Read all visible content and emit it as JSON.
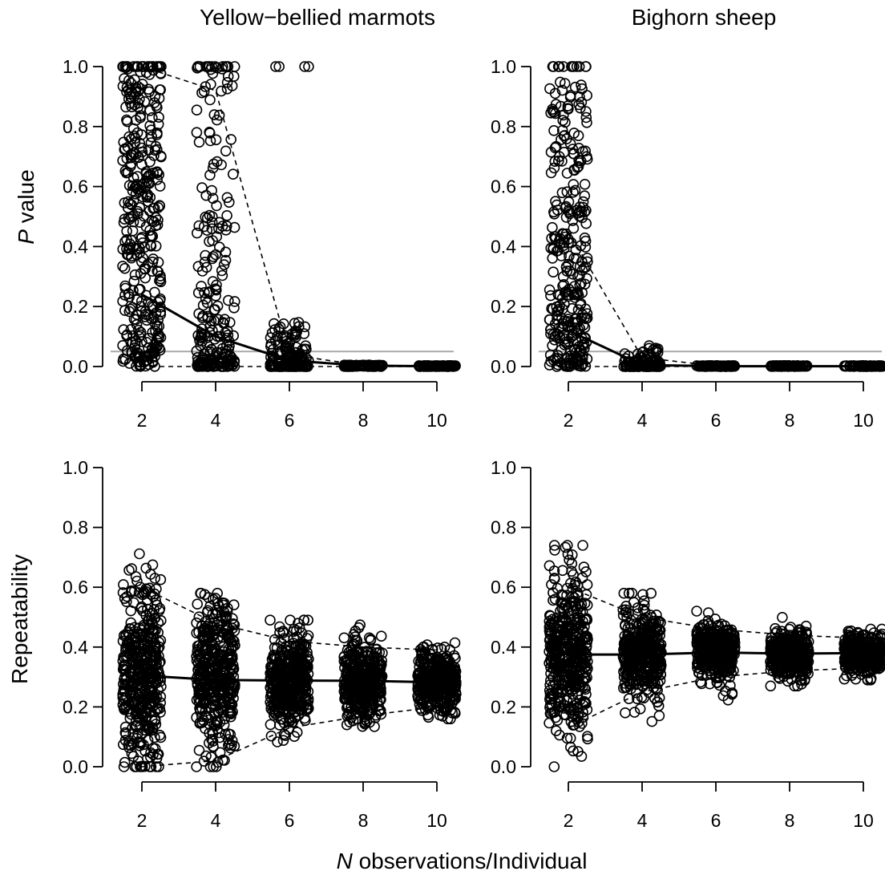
{
  "labels": {
    "xlabel_italic": "N",
    "xlabel_rest": " observations/Individual",
    "ylabel_top_italic": "P",
    "ylabel_top_rest": " value",
    "ylabel_bottom": "Repeatability"
  },
  "chart_data": [
    {
      "type": "scatter",
      "title": "Yellow−bellied marmots",
      "ylabel": "P value",
      "x_ticks": [
        2,
        4,
        6,
        8,
        10
      ],
      "y_ticks": [
        "0.0",
        "0.2",
        "0.4",
        "0.6",
        "0.8",
        "1.0"
      ],
      "xlim": [
        1.6,
        10.4
      ],
      "ylim": [
        0,
        1
      ],
      "reference_line": 0.05,
      "mean": {
        "x": [
          2,
          4,
          6,
          8,
          10
        ],
        "y": [
          0.24,
          0.1,
          0.02,
          0.003,
          0.001
        ]
      },
      "upper": {
        "x": [
          2,
          4,
          6,
          8,
          10
        ],
        "y": [
          1.0,
          0.92,
          0.04,
          0.003,
          0.001
        ]
      },
      "lower": {
        "x": [
          2,
          4,
          6,
          8,
          10
        ],
        "y": [
          0.0,
          0.0,
          0.0,
          0.0,
          0.0
        ]
      },
      "groups": [
        {
          "x": 2,
          "n": 340,
          "range": [
            0.0,
            1.0
          ],
          "skew": 1.2,
          "cap_count": 18,
          "cap_value": 1.0
        },
        {
          "x": 4,
          "n": 220,
          "range": [
            0.0,
            1.0
          ],
          "skew": 2.6,
          "cap_count": 14,
          "cap_value": 1.0
        },
        {
          "x": 6,
          "n": 170,
          "range": [
            0.0,
            0.15
          ],
          "skew": 3.0,
          "cap_count": 4,
          "cap_value": 1.0
        },
        {
          "x": 8,
          "n": 90,
          "range": [
            0.0,
            0.005
          ],
          "skew": 1.0,
          "cap_count": 0,
          "cap_value": 1.0
        },
        {
          "x": 10,
          "n": 90,
          "range": [
            0.0,
            0.003
          ],
          "skew": 1.0,
          "cap_count": 0,
          "cap_value": 1.0
        }
      ]
    },
    {
      "type": "scatter",
      "title": "Bighorn sheep",
      "ylabel": "P value",
      "x_ticks": [
        2,
        4,
        6,
        8,
        10
      ],
      "y_ticks": [
        "0.0",
        "0.2",
        "0.4",
        "0.6",
        "0.8",
        "1.0"
      ],
      "xlim": [
        1.6,
        10.4
      ],
      "ylim": [
        0,
        1
      ],
      "reference_line": 0.05,
      "mean": {
        "x": [
          2,
          4,
          6,
          8,
          10
        ],
        "y": [
          0.12,
          0.005,
          0.001,
          0.001,
          0.001
        ]
      },
      "upper": {
        "x": [
          2,
          4,
          6,
          8,
          10
        ],
        "y": [
          0.45,
          0.03,
          0.002,
          0.001,
          0.001
        ]
      },
      "lower": {
        "x": [
          2,
          4,
          6,
          8,
          10
        ],
        "y": [
          0.0,
          0.0,
          0.0,
          0.0,
          0.0
        ]
      },
      "groups": [
        {
          "x": 2,
          "n": 300,
          "range": [
            0.0,
            0.95
          ],
          "skew": 1.6,
          "cap_count": 12,
          "cap_value": 1.0
        },
        {
          "x": 4,
          "n": 110,
          "range": [
            0.0,
            0.07
          ],
          "skew": 3.5,
          "cap_count": 0,
          "cap_value": 1.0
        },
        {
          "x": 6,
          "n": 80,
          "range": [
            0.0,
            0.003
          ],
          "skew": 1.0,
          "cap_count": 0,
          "cap_value": 1.0
        },
        {
          "x": 8,
          "n": 80,
          "range": [
            0.0,
            0.003
          ],
          "skew": 1.0,
          "cap_count": 0,
          "cap_value": 1.0
        },
        {
          "x": 10,
          "n": 80,
          "range": [
            0.0,
            0.003
          ],
          "skew": 1.0,
          "cap_count": 0,
          "cap_value": 1.0
        }
      ]
    },
    {
      "type": "scatter",
      "ylabel": "Repeatability",
      "x_ticks": [
        2,
        4,
        6,
        8,
        10
      ],
      "y_ticks": [
        "0.0",
        "0.2",
        "0.4",
        "0.6",
        "0.8",
        "1.0"
      ],
      "xlim": [
        1.6,
        10.4
      ],
      "ylim": [
        0,
        1
      ],
      "mean": {
        "x": [
          2,
          4,
          6,
          8,
          10
        ],
        "y": [
          0.305,
          0.29,
          0.288,
          0.287,
          0.282
        ]
      },
      "upper": {
        "x": [
          2,
          4,
          6,
          8,
          10
        ],
        "y": [
          0.6,
          0.48,
          0.42,
          0.4,
          0.39
        ]
      },
      "lower": {
        "x": [
          2,
          4,
          6,
          8,
          10
        ],
        "y": [
          0.0,
          0.02,
          0.13,
          0.17,
          0.2
        ]
      },
      "groups": [
        {
          "x": 2,
          "n": 420,
          "mean": 0.31,
          "sd": 0.16,
          "min": 0.0,
          "max": 0.78
        },
        {
          "x": 4,
          "n": 420,
          "mean": 0.3,
          "sd": 0.12,
          "min": 0.0,
          "max": 0.58
        },
        {
          "x": 6,
          "n": 400,
          "mean": 0.29,
          "sd": 0.085,
          "min": 0.0,
          "max": 0.49
        },
        {
          "x": 8,
          "n": 380,
          "mean": 0.287,
          "sd": 0.065,
          "min": 0.13,
          "max": 0.5
        },
        {
          "x": 10,
          "n": 380,
          "mean": 0.282,
          "sd": 0.055,
          "min": 0.16,
          "max": 0.44
        }
      ]
    },
    {
      "type": "scatter",
      "ylabel": "Repeatability",
      "x_ticks": [
        2,
        4,
        6,
        8,
        10
      ],
      "y_ticks": [
        "0.0",
        "0.2",
        "0.4",
        "0.6",
        "0.8",
        "1.0"
      ],
      "xlim": [
        1.6,
        10.4
      ],
      "ylim": [
        0,
        1
      ],
      "mean": {
        "x": [
          2,
          4,
          6,
          8,
          10
        ],
        "y": [
          0.375,
          0.375,
          0.382,
          0.378,
          0.38
        ]
      },
      "upper": {
        "x": [
          2,
          4,
          6,
          8,
          10
        ],
        "y": [
          0.6,
          0.5,
          0.46,
          0.44,
          0.43
        ]
      },
      "lower": {
        "x": [
          2,
          4,
          6,
          8,
          10
        ],
        "y": [
          0.13,
          0.25,
          0.3,
          0.32,
          0.33
        ]
      },
      "groups": [
        {
          "x": 2,
          "n": 420,
          "mean": 0.37,
          "sd": 0.14,
          "min": 0.0,
          "max": 0.74
        },
        {
          "x": 4,
          "n": 400,
          "mean": 0.375,
          "sd": 0.075,
          "min": 0.15,
          "max": 0.58
        },
        {
          "x": 6,
          "n": 380,
          "mean": 0.382,
          "sd": 0.05,
          "min": 0.22,
          "max": 0.52
        },
        {
          "x": 8,
          "n": 380,
          "mean": 0.378,
          "sd": 0.04,
          "min": 0.27,
          "max": 0.51
        },
        {
          "x": 10,
          "n": 380,
          "mean": 0.38,
          "sd": 0.033,
          "min": 0.29,
          "max": 0.46
        }
      ]
    }
  ]
}
